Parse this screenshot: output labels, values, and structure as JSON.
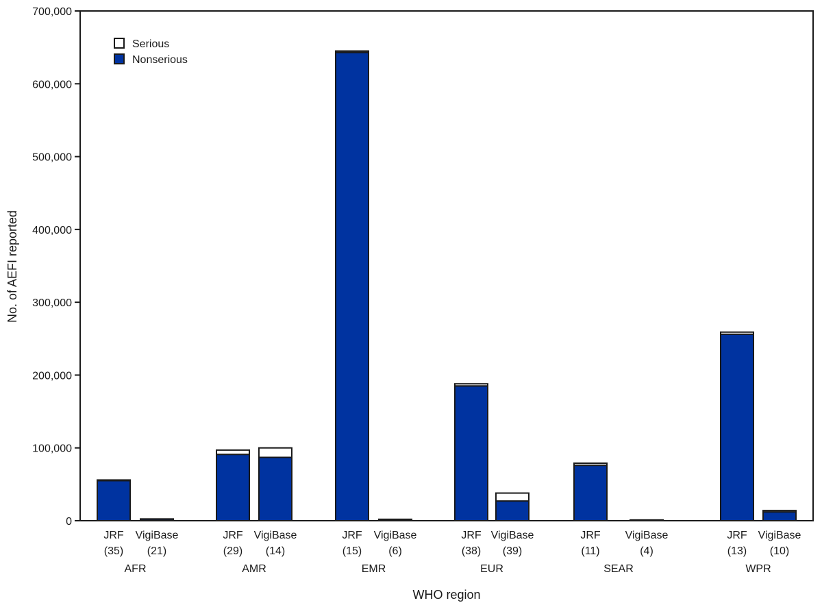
{
  "chart_data": {
    "type": "bar",
    "stacked": true,
    "xlabel": "WHO region",
    "ylabel": "No. of AEFI reported",
    "ylim": [
      0,
      700000
    ],
    "yticks": [
      0,
      100000,
      200000,
      300000,
      400000,
      500000,
      600000,
      700000
    ],
    "ytick_labels": [
      "0",
      "100,000",
      "200,000",
      "300,000",
      "400,000",
      "500,000",
      "600,000",
      "700,000"
    ],
    "legend": {
      "position": "top-left"
    },
    "groups": [
      "AFR",
      "AMR",
      "EMR",
      "EUR",
      "SEAR",
      "WPR"
    ],
    "categories": [
      {
        "group": "AFR",
        "label": "JRF",
        "count": "(35)"
      },
      {
        "group": "AFR",
        "label": "VigiBase",
        "count": "(21)"
      },
      {
        "group": "AMR",
        "label": "JRF",
        "count": "(29)"
      },
      {
        "group": "AMR",
        "label": "VigiBase",
        "count": "(14)"
      },
      {
        "group": "EMR",
        "label": "JRF",
        "count": "(15)"
      },
      {
        "group": "EMR",
        "label": "VigiBase",
        "count": "(6)"
      },
      {
        "group": "EUR",
        "label": "JRF",
        "count": "(38)"
      },
      {
        "group": "EUR",
        "label": "VigiBase",
        "count": "(39)"
      },
      {
        "group": "SEAR",
        "label": "JRF",
        "count": "(11)"
      },
      {
        "group": "SEAR",
        "label": "VigiBase",
        "count": "(4)"
      },
      {
        "group": "WPR",
        "label": "JRF",
        "count": "(13)"
      },
      {
        "group": "WPR",
        "label": "VigiBase",
        "count": "(10)"
      }
    ],
    "series": [
      {
        "name": "Nonserious",
        "color": "#0033a0",
        "values": [
          55000,
          2000,
          91000,
          87000,
          643000,
          1500,
          185000,
          27000,
          76000,
          800,
          256000,
          12000
        ]
      },
      {
        "name": "Serious",
        "color": "#ffffff",
        "values": [
          1000,
          500,
          6000,
          13000,
          2000,
          500,
          3000,
          11000,
          3000,
          300,
          3000,
          2000
        ]
      }
    ]
  }
}
